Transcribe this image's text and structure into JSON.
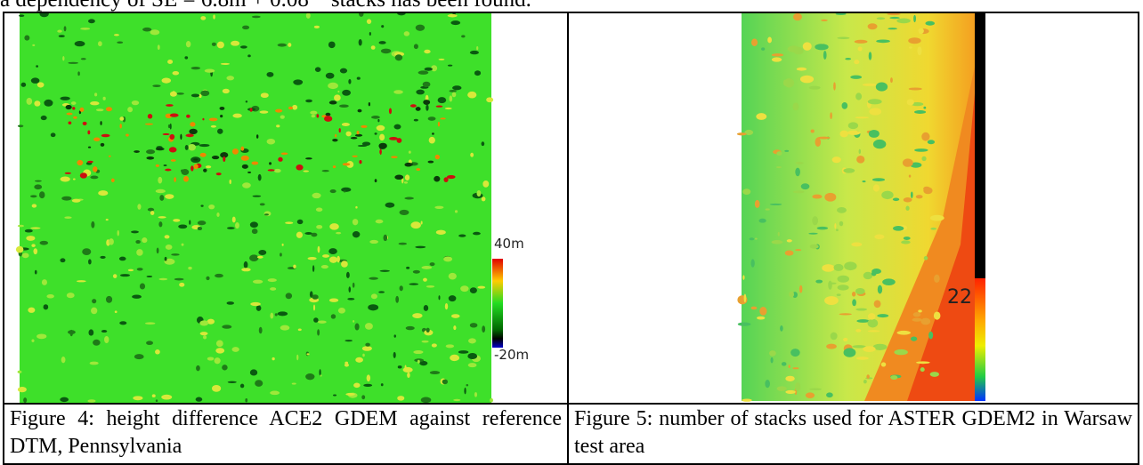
{
  "intro_text": "a dependency of SE = 6.8m + 0.08 * stacks has been found.",
  "figures": [
    {
      "caption": "Figure 4: height difference ACE2 GDEM against reference DTM, Pennsylvania",
      "colorbar_max": "40m",
      "colorbar_min": "-20m"
    },
    {
      "caption": "Figure 5: number of stacks used for ASTER GDEM2 in Warsaw test area",
      "colorbar_label": "22"
    }
  ]
}
